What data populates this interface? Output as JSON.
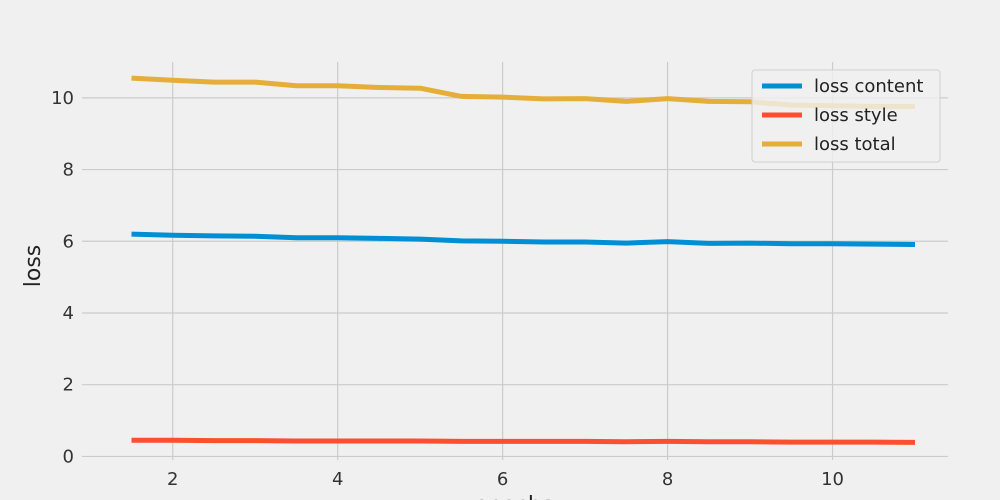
{
  "chart_data": {
    "type": "line",
    "title": "",
    "xlabel": "epochs",
    "ylabel": "loss",
    "xlim": [
      0.9,
      11.4
    ],
    "ylim": [
      -0.1,
      11.0
    ],
    "xticks": [
      2,
      4,
      6,
      8,
      10
    ],
    "yticks": [
      0,
      2,
      4,
      6,
      8,
      10
    ],
    "grid": true,
    "legend_position": "top-right",
    "x": [
      1.5,
      2.0,
      2.5,
      3.0,
      3.5,
      4.0,
      4.5,
      5.0,
      5.5,
      6.0,
      6.5,
      7.0,
      7.5,
      8.0,
      8.5,
      9.0,
      9.5,
      10.0,
      10.5,
      11.0
    ],
    "series": [
      {
        "name": "loss content",
        "color": "#008fd5",
        "values": [
          6.2,
          6.17,
          6.15,
          6.14,
          6.1,
          6.1,
          6.08,
          6.06,
          6.01,
          6.0,
          5.98,
          5.98,
          5.95,
          5.99,
          5.94,
          5.95,
          5.93,
          5.93,
          5.92,
          5.91
        ]
      },
      {
        "name": "loss style",
        "color": "#fc4f30",
        "values": [
          0.45,
          0.45,
          0.44,
          0.44,
          0.43,
          0.43,
          0.43,
          0.43,
          0.42,
          0.42,
          0.42,
          0.42,
          0.41,
          0.42,
          0.41,
          0.41,
          0.4,
          0.4,
          0.4,
          0.39
        ]
      },
      {
        "name": "loss total",
        "color": "#e5ae38",
        "values": [
          10.55,
          10.49,
          10.44,
          10.44,
          10.34,
          10.34,
          10.29,
          10.27,
          10.04,
          10.02,
          9.97,
          9.98,
          9.9,
          9.98,
          9.9,
          9.89,
          9.8,
          9.78,
          9.76,
          9.76
        ]
      }
    ]
  }
}
